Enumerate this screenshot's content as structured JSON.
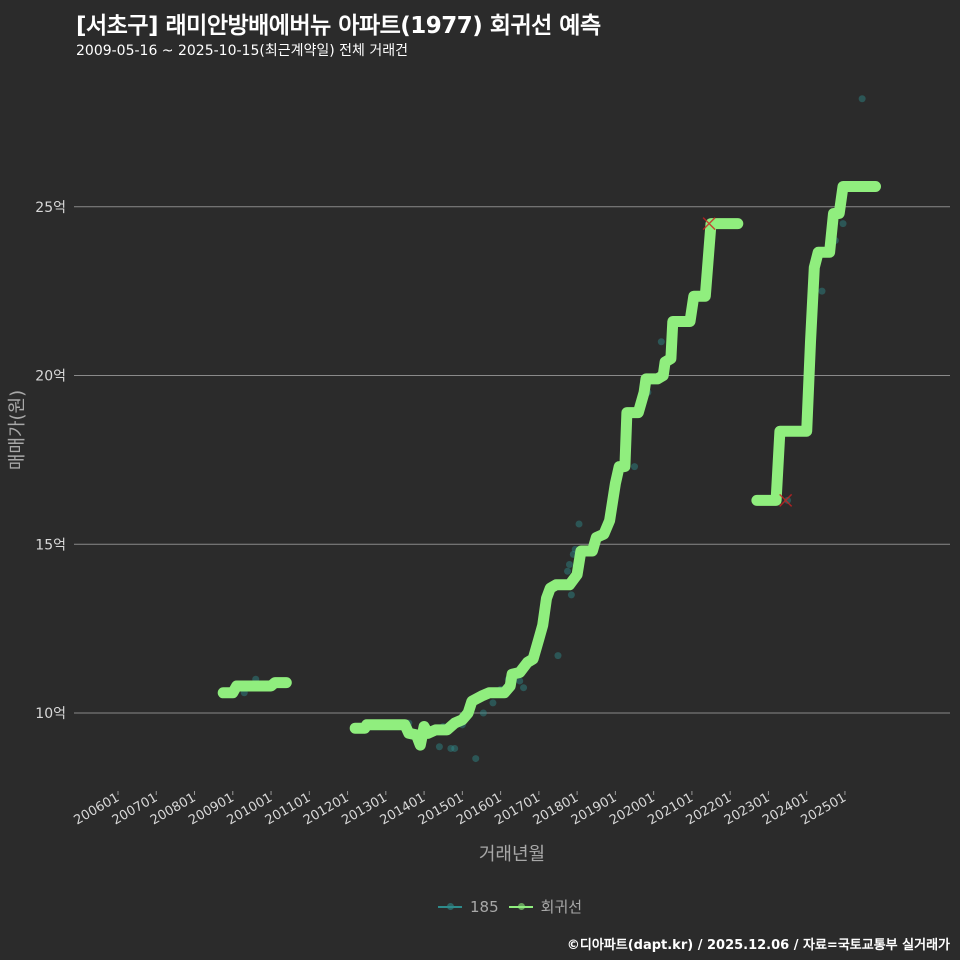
{
  "header": {
    "title": "[서초구] 래미안방배에버뉴 아파트(1977) 회귀선 예측",
    "subtitle": "2009-05-16 ~ 2025-10-15(최근계약일) 전체 거래건"
  },
  "legend": {
    "items": [
      {
        "label": "185",
        "color": "#2e8b8b"
      },
      {
        "label": "회귀선",
        "color": "#90ee7e"
      }
    ]
  },
  "caption": "©디아파트(dapt.kr) / 2025.12.06 / 자료=국토교통부 실거래가",
  "chart_data": {
    "type": "line",
    "title": "[서초구] 래미안방배에버뉴 아파트(1977) 회귀선 예측",
    "subtitle": "2009-05-16 ~ 2025-10-15(최근계약일) 전체 거래건",
    "xlabel": "거래년월",
    "ylabel": "매매가(원)",
    "x_ticks": [
      "200601",
      "200701",
      "200801",
      "200901",
      "201001",
      "201101",
      "201201",
      "201301",
      "201401",
      "201501",
      "201601",
      "201701",
      "201801",
      "201901",
      "202001",
      "202101",
      "202201",
      "202301",
      "202401",
      "202501"
    ],
    "y_ticks": [
      {
        "value": 10,
        "label": "10억"
      },
      {
        "value": 15,
        "label": "15억"
      },
      {
        "value": 20,
        "label": "20억"
      },
      {
        "value": 25,
        "label": "25억"
      }
    ],
    "ylim": [
      8.2,
      28.5
    ],
    "grid": "horizontal",
    "legend_position": "bottom",
    "series": [
      {
        "name": "회귀선",
        "color": "#90ee7e",
        "segments": [
          [
            [
              2008.75,
              10.6
            ],
            [
              2009.0,
              10.6
            ],
            [
              2009.1,
              10.8
            ],
            [
              2009.6,
              10.8
            ],
            [
              2010.0,
              10.8
            ],
            [
              2010.1,
              10.9
            ],
            [
              2010.4,
              10.9
            ]
          ],
          [
            [
              2012.2,
              9.55
            ],
            [
              2012.45,
              9.55
            ],
            [
              2012.5,
              9.65
            ],
            [
              2013.0,
              9.65
            ],
            [
              2013.5,
              9.65
            ],
            [
              2013.6,
              9.4
            ],
            [
              2013.8,
              9.35
            ],
            [
              2013.9,
              9.05
            ],
            [
              2014.0,
              9.6
            ],
            [
              2014.1,
              9.4
            ],
            [
              2014.3,
              9.5
            ],
            [
              2014.6,
              9.5
            ],
            [
              2014.8,
              9.7
            ],
            [
              2015.0,
              9.8
            ],
            [
              2015.15,
              10.0
            ],
            [
              2015.25,
              10.35
            ],
            [
              2015.5,
              10.5
            ],
            [
              2015.7,
              10.6
            ],
            [
              2016.1,
              10.6
            ],
            [
              2016.25,
              10.8
            ],
            [
              2016.3,
              11.15
            ],
            [
              2016.5,
              11.2
            ],
            [
              2016.7,
              11.5
            ],
            [
              2016.85,
              11.6
            ],
            [
              2017.0,
              12.2
            ],
            [
              2017.1,
              12.6
            ],
            [
              2017.2,
              13.4
            ],
            [
              2017.3,
              13.7
            ],
            [
              2017.45,
              13.8
            ],
            [
              2017.8,
              13.8
            ],
            [
              2018.0,
              14.1
            ],
            [
              2018.1,
              14.8
            ],
            [
              2018.4,
              14.8
            ],
            [
              2018.5,
              15.2
            ],
            [
              2018.7,
              15.3
            ],
            [
              2018.85,
              15.7
            ],
            [
              2019.0,
              16.8
            ],
            [
              2019.1,
              17.3
            ],
            [
              2019.25,
              17.3
            ],
            [
              2019.3,
              18.9
            ],
            [
              2019.6,
              18.9
            ],
            [
              2019.75,
              19.5
            ],
            [
              2019.8,
              19.9
            ],
            [
              2020.1,
              19.9
            ],
            [
              2020.25,
              20.0
            ],
            [
              2020.3,
              20.4
            ],
            [
              2020.45,
              20.5
            ],
            [
              2020.5,
              21.6
            ],
            [
              2020.95,
              21.6
            ],
            [
              2021.05,
              22.35
            ],
            [
              2021.35,
              22.35
            ],
            [
              2021.5,
              24.5
            ],
            [
              2022.2,
              24.5
            ]
          ],
          [
            [
              2022.7,
              16.3
            ],
            [
              2023.2,
              16.3
            ],
            [
              2023.3,
              18.35
            ],
            [
              2024.0,
              18.35
            ],
            [
              2024.1,
              21.0
            ],
            [
              2024.2,
              23.2
            ],
            [
              2024.3,
              23.65
            ],
            [
              2024.6,
              23.65
            ],
            [
              2024.7,
              24.8
            ],
            [
              2024.85,
              24.8
            ],
            [
              2024.95,
              25.6
            ],
            [
              2025.8,
              25.6
            ]
          ]
        ]
      },
      {
        "name": "185",
        "color": "#2e8b8b",
        "points": [
          [
            2009.3,
            10.6
          ],
          [
            2009.5,
            10.85
          ],
          [
            2009.6,
            11.0
          ],
          [
            2009.5,
            10.75
          ],
          [
            2012.9,
            9.6
          ],
          [
            2013.2,
            9.6
          ],
          [
            2013.6,
            9.7
          ],
          [
            2014.4,
            9.0
          ],
          [
            2014.5,
            9.6
          ],
          [
            2014.9,
            9.75
          ],
          [
            2015.0,
            9.65
          ],
          [
            2015.2,
            10.0
          ],
          [
            2015.35,
            8.65
          ],
          [
            2015.55,
            10.0
          ],
          [
            2015.8,
            10.3
          ],
          [
            2015.9,
            10.55
          ],
          [
            2014.7,
            8.95
          ],
          [
            2014.8,
            8.95
          ],
          [
            2016.0,
            10.7
          ],
          [
            2016.2,
            11.0
          ],
          [
            2016.3,
            10.8
          ],
          [
            2016.5,
            10.95
          ],
          [
            2016.6,
            10.75
          ],
          [
            2017.5,
            11.7
          ],
          [
            2017.8,
            14.4
          ],
          [
            2017.75,
            14.2
          ],
          [
            2017.9,
            14.7
          ],
          [
            2017.95,
            14.85
          ],
          [
            2017.85,
            13.5
          ],
          [
            2018.05,
            15.6
          ],
          [
            2019.5,
            17.3
          ],
          [
            2019.6,
            19.0
          ],
          [
            2019.85,
            19.5
          ],
          [
            2020.05,
            19.85
          ],
          [
            2020.2,
            20.0
          ],
          [
            2020.05,
            19.9
          ],
          [
            2020.2,
            21.0
          ],
          [
            2021.45,
            24.5
          ],
          [
            2023.5,
            16.3
          ],
          [
            2024.4,
            22.5
          ],
          [
            2024.75,
            24.0
          ],
          [
            2024.95,
            24.5
          ],
          [
            2025.45,
            28.2
          ]
        ]
      }
    ],
    "outlier_markers": [
      [
        2021.45,
        24.5
      ],
      [
        2023.45,
        16.3
      ]
    ]
  }
}
